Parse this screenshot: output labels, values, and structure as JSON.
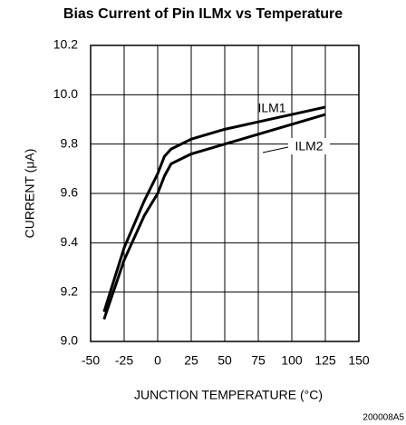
{
  "chart_data": {
    "type": "line",
    "title": "Bias Current of Pin ILMx vs Temperature",
    "xlabel": "JUNCTION TEMPERATURE (°C)",
    "ylabel": "CURRENT (μA)",
    "footnote": "200008A5",
    "x": [
      -40,
      -25,
      -10,
      0,
      5,
      10,
      25,
      50,
      75,
      100,
      125
    ],
    "series": [
      {
        "name": "ILM1",
        "color": "#000000",
        "values": [
          9.12,
          9.38,
          9.57,
          9.68,
          9.75,
          9.78,
          9.82,
          9.86,
          9.89,
          9.92,
          9.95
        ]
      },
      {
        "name": "ILM2",
        "color": "#000000",
        "values": [
          9.09,
          9.33,
          9.51,
          9.6,
          9.67,
          9.72,
          9.76,
          9.8,
          9.84,
          9.88,
          9.92
        ]
      }
    ],
    "xlim": [
      -50,
      150
    ],
    "xticks": [
      -50,
      -25,
      0,
      25,
      50,
      75,
      100,
      125,
      150
    ],
    "ylim": [
      9.0,
      10.2
    ],
    "yticks": [
      {
        "value": 9,
        "label": "9.0"
      },
      9.2,
      9.4,
      9.6,
      9.8,
      {
        "value": 10,
        "label": "10.0"
      },
      10.2
    ],
    "grid": true
  }
}
